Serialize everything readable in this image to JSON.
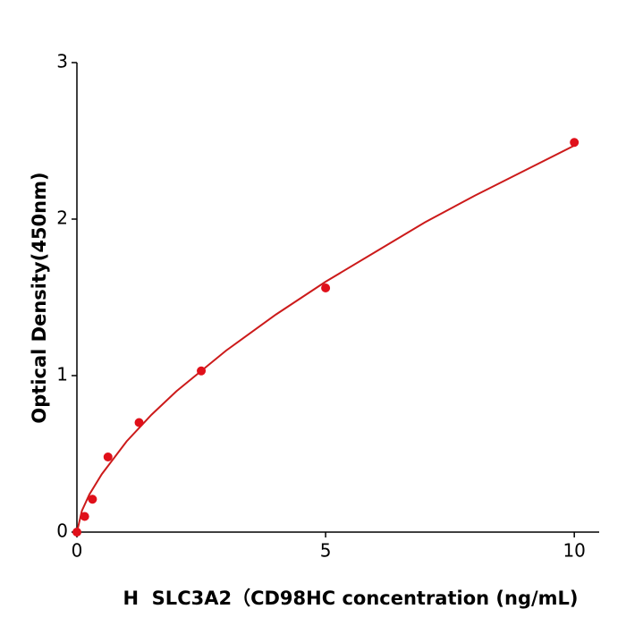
{
  "chart_data": {
    "type": "scatter",
    "x_label": "H  SLC3A2（CD98HC concentration (ng/mL)",
    "y_label": "Optical Density(450nm)",
    "xlim": [
      0,
      10.5
    ],
    "ylim": [
      0,
      3
    ],
    "xticks": [
      0,
      5,
      10
    ],
    "yticks": [
      0,
      1,
      2,
      3
    ],
    "color": "#e0101a",
    "x": [
      0,
      0.156,
      0.3125,
      0.625,
      1.25,
      2.5,
      5,
      10
    ],
    "values": [
      0,
      0.1,
      0.21,
      0.48,
      0.7,
      1.03,
      1.56,
      2.49
    ],
    "fit": {
      "color": "#cc1a1a",
      "x": [
        0,
        0.1,
        0.25,
        0.5,
        1,
        1.5,
        2,
        3,
        4,
        5,
        6,
        7,
        8,
        9,
        10
      ],
      "values": [
        0,
        0.136,
        0.24,
        0.37,
        0.58,
        0.75,
        0.9,
        1.16,
        1.39,
        1.6,
        1.79,
        1.98,
        2.15,
        2.31,
        2.47
      ]
    }
  }
}
